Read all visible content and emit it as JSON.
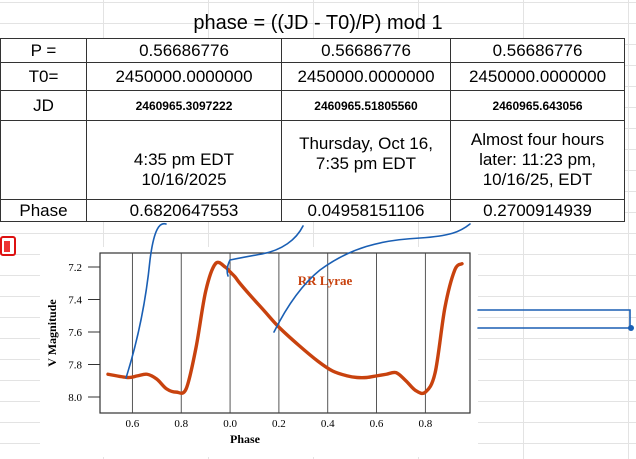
{
  "sheet": {
    "title": "phase = ((JD - T0)/P) mod 1",
    "rows": {
      "p": {
        "label": "P =",
        "values": [
          "0.56686776",
          "0.56686776",
          "0.56686776"
        ]
      },
      "t0": {
        "label": "T0=",
        "values": [
          "2450000.0000000",
          "2450000.0000000",
          "2450000.0000000"
        ]
      },
      "jd": {
        "label": "JD",
        "values": [
          "2460965.3097222",
          "2460965.51805560",
          "2460965.643056"
        ]
      },
      "time": {
        "label": "",
        "values": [
          "4:35 pm EDT 10/16/2025",
          "Thursday, Oct 16, 7:35 pm EDT",
          "Almost four hours later: 11:23 pm, 10/16/25, EDT"
        ]
      },
      "phase": {
        "label": "Phase",
        "values": [
          "0.6820647553",
          "0.04958151106",
          "0.2700914939"
        ]
      }
    }
  },
  "chart_data": {
    "type": "line",
    "title": "RR Lyrae",
    "xlabel": "Phase",
    "ylabel": "V Magnitude",
    "xticks": [
      "0.6",
      "0.8",
      "0.0",
      "0.2",
      "0.4",
      "0.6",
      "0.8"
    ],
    "yticks": [
      "7.2",
      "7.4",
      "7.6",
      "7.8",
      "8.0"
    ],
    "ylim": [
      7.2,
      8.0
    ],
    "y_inverted": true,
    "xrange": [
      0.5,
      1.95
    ],
    "series": [
      {
        "color": "#c8420e",
        "x": [
          0.5,
          0.58,
          0.62,
          0.66,
          0.7,
          0.74,
          0.78,
          0.82,
          0.86,
          0.9,
          0.94,
          0.98,
          1.0,
          1.02,
          1.04,
          1.08,
          1.14,
          1.2,
          1.28,
          1.36,
          1.42,
          1.48,
          1.52,
          1.56,
          1.6,
          1.64,
          1.68,
          1.72,
          1.76,
          1.8,
          1.84,
          1.88,
          1.92,
          1.95
        ],
        "values": [
          7.86,
          7.88,
          7.87,
          7.86,
          7.89,
          7.95,
          7.97,
          7.95,
          7.7,
          7.35,
          7.18,
          7.2,
          7.23,
          7.26,
          7.3,
          7.37,
          7.47,
          7.57,
          7.68,
          7.78,
          7.84,
          7.87,
          7.88,
          7.88,
          7.87,
          7.86,
          7.85,
          7.9,
          7.96,
          7.97,
          7.85,
          7.45,
          7.22,
          7.18
        ]
      }
    ]
  },
  "annotation_color": "#1a5fb4"
}
